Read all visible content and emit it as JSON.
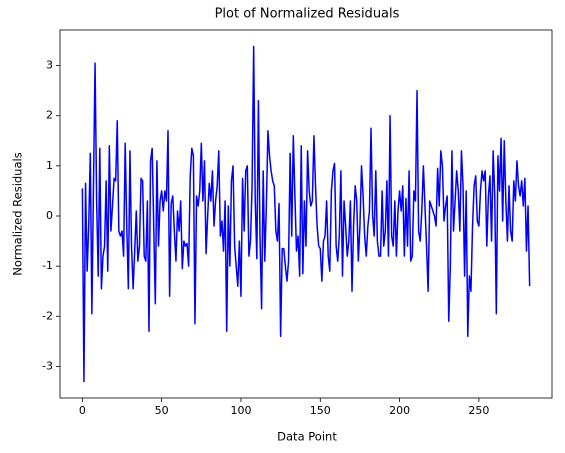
{
  "chart_data": {
    "type": "line",
    "title": "Plot of Normalized Residuals",
    "x_label": "Data Point",
    "y_label": "Normalized Residuals",
    "x": [
      0,
      1,
      2,
      3,
      4,
      5,
      6,
      7,
      8,
      9,
      10,
      11,
      12,
      13,
      14,
      15,
      16,
      17,
      18,
      19,
      20,
      21,
      22,
      23,
      24,
      25,
      26,
      27,
      28,
      29,
      30,
      31,
      32,
      33,
      34,
      35,
      36,
      37,
      38,
      39,
      40,
      41,
      42,
      43,
      44,
      45,
      46,
      47,
      48,
      49,
      50,
      51,
      52,
      53,
      54,
      55,
      56,
      57,
      58,
      59,
      60,
      61,
      62,
      63,
      64,
      65,
      66,
      67,
      68,
      69,
      70,
      71,
      72,
      73,
      74,
      75,
      76,
      77,
      78,
      79,
      80,
      81,
      82,
      83,
      84,
      85,
      86,
      87,
      88,
      89,
      90,
      91,
      92,
      93,
      94,
      95,
      96,
      97,
      98,
      99,
      100,
      101,
      102,
      103,
      104,
      105,
      106,
      107,
      108,
      109,
      110,
      111,
      112,
      113,
      114,
      115,
      116,
      117,
      118,
      119,
      120,
      121,
      122,
      123,
      124,
      125,
      126,
      127,
      128,
      129,
      130,
      131,
      132,
      133,
      134,
      135,
      136,
      137,
      138,
      139,
      140,
      141,
      142,
      143,
      144,
      145,
      146,
      147,
      148,
      149,
      150,
      151,
      152,
      153,
      154,
      155,
      156,
      157,
      158,
      159,
      160,
      161,
      162,
      163,
      164,
      165,
      166,
      167,
      168,
      169,
      170,
      171,
      172,
      173,
      174,
      175,
      176,
      177,
      178,
      179,
      180,
      181,
      182,
      183,
      184,
      185,
      186,
      187,
      188,
      189,
      190,
      191,
      192,
      193,
      194,
      195,
      196,
      197,
      198,
      199,
      200,
      201,
      202,
      203,
      204,
      205,
      206,
      207,
      208,
      209,
      210,
      211,
      212,
      213,
      214,
      215,
      216,
      217,
      218,
      219,
      220,
      221,
      222,
      223,
      224,
      225,
      226,
      227,
      228,
      229,
      230,
      231,
      232,
      233,
      234,
      235,
      236,
      237,
      238,
      239,
      240,
      241,
      242,
      243,
      244,
      245,
      246,
      247,
      248,
      249,
      250,
      251,
      252,
      253,
      254,
      255,
      256,
      257,
      258,
      259,
      260,
      261,
      262,
      263,
      264,
      265,
      266,
      267,
      268,
      269,
      270,
      271,
      272,
      273,
      274,
      275,
      276,
      277,
      278,
      279,
      280,
      281,
      282
    ],
    "series": [
      {
        "color": "#0000ff",
        "values": [
          0.55,
          -3.3,
          0.65,
          -1.1,
          -0.2,
          1.25,
          -1.95,
          0.6,
          3.05,
          0.3,
          -1.2,
          1.35,
          -1.45,
          -0.8,
          -0.6,
          0.7,
          -1.1,
          1.4,
          -0.3,
          0.2,
          0.75,
          0.7,
          1.9,
          -0.3,
          -0.4,
          -0.3,
          -0.8,
          1.45,
          -0.2,
          -1.45,
          1.3,
          -0.6,
          -1.45,
          -0.7,
          0.1,
          -0.9,
          -0.6,
          0.75,
          0.7,
          -0.8,
          -0.9,
          0.3,
          -2.3,
          1.1,
          1.35,
          -0.2,
          -1.75,
          1.1,
          -0.6,
          0.3,
          0.5,
          0.1,
          0.5,
          0.3,
          1.7,
          -1.6,
          0.25,
          0.4,
          -0.3,
          -0.9,
          0.1,
          -0.3,
          0.3,
          -1.05,
          -0.5,
          -0.6,
          -0.55,
          -1.0,
          0.8,
          1.35,
          1.2,
          -2.15,
          0.4,
          0.2,
          0.5,
          1.45,
          0.3,
          1.1,
          -0.75,
          0.0,
          0.65,
          0.3,
          0.9,
          -0.2,
          0.3,
          0.6,
          1.3,
          -0.4,
          -0.1,
          -0.7,
          0.3,
          -2.3,
          0.2,
          -1.0,
          0.7,
          1.0,
          -0.6,
          -1.0,
          -1.4,
          -0.5,
          -1.6,
          0.75,
          -0.3,
          0.9,
          1.0,
          -0.8,
          -0.5,
          0.6,
          3.38,
          0.3,
          -0.85,
          2.3,
          -0.4,
          -1.85,
          0.9,
          -0.9,
          0.2,
          1.7,
          1.2,
          0.9,
          0.7,
          0.6,
          -0.3,
          -0.5,
          0.25,
          -2.4,
          -0.65,
          -0.65,
          -1.0,
          -1.3,
          -0.9,
          1.25,
          -0.4,
          1.6,
          0.4,
          -0.7,
          -0.4,
          -1.2,
          1.4,
          -1.15,
          0.3,
          -0.6,
          1.3,
          0.5,
          0.2,
          0.3,
          1.6,
          0.6,
          -0.2,
          -0.6,
          -0.65,
          -1.3,
          -0.5,
          -0.4,
          0.3,
          -0.8,
          -1.1,
          0.5,
          0.9,
          1.05,
          -0.6,
          -0.9,
          -0.4,
          0.9,
          -1.2,
          0.3,
          -0.2,
          -0.8,
          -0.5,
          0.3,
          -1.5,
          -0.2,
          0.6,
          0.3,
          -0.9,
          -0.2,
          1.0,
          0.4,
          -0.4,
          -0.8,
          -0.2,
          0.1,
          1.75,
          0.0,
          -0.4,
          0.9,
          -0.5,
          -0.8,
          -0.8,
          0.5,
          -0.6,
          -0.3,
          0.7,
          -0.8,
          2.0,
          -0.4,
          -0.6,
          0.3,
          -0.8,
          0.1,
          0.5,
          0.1,
          0.6,
          -0.8,
          0.35,
          -0.6,
          0.9,
          -0.9,
          -0.8,
          0.5,
          0.3,
          2.5,
          -0.3,
          -0.5,
          0.1,
          1.0,
          0.2,
          -0.6,
          -1.5,
          0.3,
          0.2,
          0.1,
          0.0,
          -0.2,
          0.95,
          0.2,
          1.3,
          1.0,
          -0.1,
          0.2,
          0.4,
          -2.1,
          -1.0,
          1.3,
          -0.3,
          0.3,
          0.9,
          0.5,
          -0.3,
          1.3,
          0.6,
          -1.2,
          0.5,
          -2.4,
          -1.2,
          -1.5,
          -0.2,
          0.6,
          0.8,
          -0.1,
          -0.2,
          0.5,
          0.9,
          0.7,
          0.9,
          -0.6,
          0.4,
          0.8,
          -0.5,
          1.3,
          0.4,
          -1.95,
          1.2,
          0.5,
          1.55,
          -0.1,
          1.5,
          0.3,
          -0.5,
          0.6,
          -0.3,
          -0.5,
          0.7,
          0.3,
          1.1,
          0.6,
          0.4,
          0.7,
          0.2,
          0.75,
          -0.7,
          0.2,
          -1.4
        ]
      }
    ],
    "xlim": [
      -14.1,
      296.1
    ],
    "xticks": [
      0,
      50,
      100,
      150,
      200,
      250
    ],
    "ylim": [
      -3.63,
      3.71
    ],
    "yticks": [
      -3,
      -2,
      -1,
      0,
      1,
      2,
      3
    ],
    "grid": false
  }
}
